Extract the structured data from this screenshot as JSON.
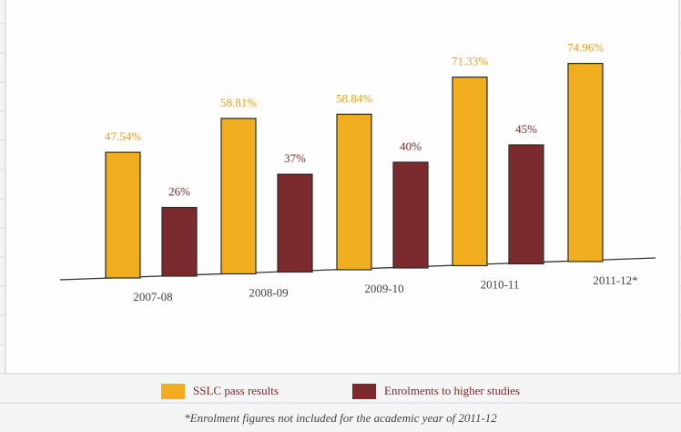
{
  "chart_data": {
    "type": "bar",
    "categories": [
      "2007-08",
      "2008-09",
      "2009-10",
      "2010-11",
      "2011-12*"
    ],
    "series": [
      {
        "name": "SSLC pass results",
        "color": "#f0ae1e",
        "values": [
          47.54,
          58.81,
          58.84,
          71.33,
          74.96
        ],
        "value_labels": [
          "47.54%",
          "58.81%",
          "58.84%",
          "71.33%",
          "74.96%"
        ]
      },
      {
        "name": "Enrolments to higher studies",
        "color": "#7b2b2e",
        "values": [
          26,
          37,
          40,
          45,
          null
        ],
        "value_labels": [
          "26%",
          "37%",
          "40%",
          "45%",
          null
        ]
      }
    ],
    "footnote": "*Enrolment figures not included for the academic year of  2011-12"
  }
}
